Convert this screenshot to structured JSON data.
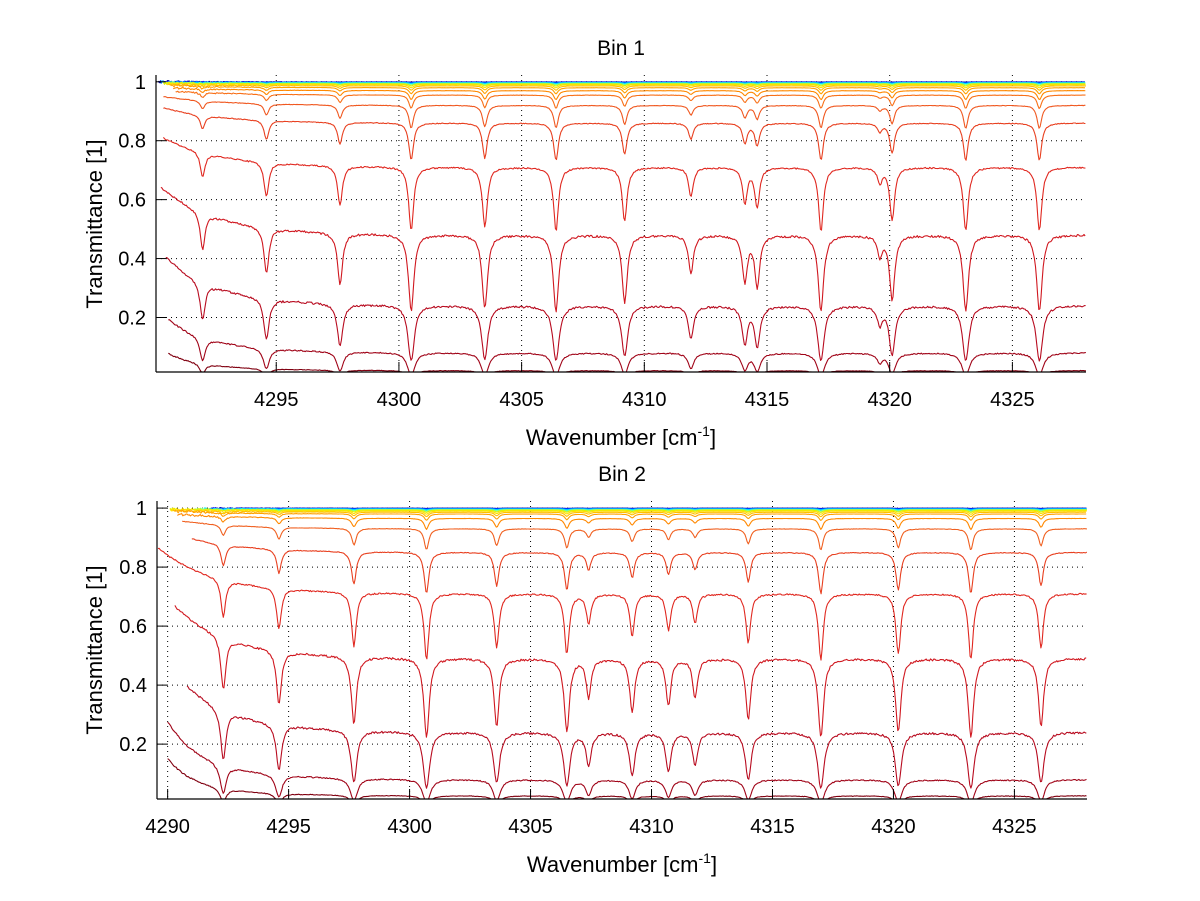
{
  "chart_data": [
    {
      "type": "line",
      "title": "Bin 1",
      "xlabel": "Wavenumber [cm",
      "xlabel_sup": "-1",
      "xlabel_end": "]",
      "ylabel": "Transmittance [1]",
      "xlim": [
        4290.1,
        4328.0
      ],
      "ylim": [
        0.015,
        1.023
      ],
      "xticks": [
        4295,
        4300,
        4305,
        4310,
        4315,
        4320,
        4325
      ],
      "xtick_labels": [
        "4295",
        "4300",
        "4305",
        "4310",
        "4315",
        "4320",
        "4325"
      ],
      "yticks": [
        0.2,
        0.4,
        0.6,
        0.8,
        1
      ],
      "ytick_labels": [
        "0.2",
        "0.4",
        "0.6",
        "0.8",
        "1"
      ],
      "grid": true,
      "legend": "none",
      "continuum_rise_at_low_wavenumber": 0.55,
      "absorption_lines": [
        {
          "center": 4292.0,
          "rel_depth": 0.2
        },
        {
          "center": 4294.6,
          "rel_depth": 0.25
        },
        {
          "center": 4297.6,
          "rel_depth": 0.28
        },
        {
          "center": 4300.5,
          "rel_depth": 0.48
        },
        {
          "center": 4303.5,
          "rel_depth": 0.45
        },
        {
          "center": 4306.4,
          "rel_depth": 0.48
        },
        {
          "center": 4309.2,
          "rel_depth": 0.4
        },
        {
          "center": 4311.9,
          "rel_depth": 0.2
        },
        {
          "center": 4314.1,
          "rel_depth": 0.25
        },
        {
          "center": 4314.6,
          "rel_depth": 0.28
        },
        {
          "center": 4317.2,
          "rel_depth": 0.48
        },
        {
          "center": 4319.6,
          "rel_depth": 0.1
        },
        {
          "center": 4320.1,
          "rel_depth": 0.38
        },
        {
          "center": 4323.1,
          "rel_depth": 0.48
        },
        {
          "center": 4326.1,
          "rel_depth": 0.48
        }
      ],
      "series": [
        {
          "baseline_transmittance": 0.9995,
          "x_start": 4290.2,
          "color": "#00008f"
        },
        {
          "baseline_transmittance": 0.999,
          "x_start": 4290.2,
          "color": "#0000ff"
        },
        {
          "baseline_transmittance": 0.998,
          "x_start": 4290.3,
          "color": "#0080ff"
        },
        {
          "baseline_transmittance": 0.997,
          "x_start": 4290.3,
          "color": "#00e0ff"
        },
        {
          "baseline_transmittance": 0.995,
          "x_start": 4290.4,
          "color": "#80ff80"
        },
        {
          "baseline_transmittance": 0.993,
          "x_start": 4290.4,
          "color": "#e0f000"
        },
        {
          "baseline_transmittance": 0.99,
          "x_start": 4290.5,
          "color": "#ffe000"
        },
        {
          "baseline_transmittance": 0.986,
          "x_start": 4290.6,
          "color": "#ffc000"
        },
        {
          "baseline_transmittance": 0.98,
          "x_start": 4290.7,
          "color": "#ffa000"
        },
        {
          "baseline_transmittance": 0.97,
          "x_start": 4290.8,
          "color": "#ff8800"
        },
        {
          "baseline_transmittance": 0.955,
          "x_start": 4290.9,
          "color": "#f87018"
        },
        {
          "baseline_transmittance": 0.92,
          "x_start": 4290.4,
          "color": "#f05820"
        },
        {
          "baseline_transmittance": 0.86,
          "x_start": 4290.4,
          "color": "#e84020"
        },
        {
          "baseline_transmittance": 0.71,
          "x_start": 4290.4,
          "color": "#e02820"
        },
        {
          "baseline_transmittance": 0.48,
          "x_start": 4290.3,
          "color": "#d01820"
        },
        {
          "baseline_transmittance": 0.24,
          "x_start": 4290.5,
          "color": "#b80c20"
        },
        {
          "baseline_transmittance": 0.08,
          "x_start": 4290.6,
          "color": "#a00418"
        },
        {
          "baseline_transmittance": 0.02,
          "x_start": 4290.6,
          "color": "#800010"
        }
      ]
    },
    {
      "type": "line",
      "title": "Bin 2",
      "xlabel": "Wavenumber [cm",
      "xlabel_sup": "-1",
      "xlabel_end": "]",
      "ylabel": "Transmittance [1]",
      "xlim": [
        4289.56,
        4328.0
      ],
      "ylim": [
        0.014,
        1.024
      ],
      "xticks": [
        4290,
        4295,
        4300,
        4305,
        4310,
        4315,
        4320,
        4325
      ],
      "xtick_labels": [
        "4290",
        "4295",
        "4300",
        "4305",
        "4310",
        "4315",
        "4320",
        "4325"
      ],
      "yticks": [
        0.2,
        0.4,
        0.6,
        0.8,
        1
      ],
      "ytick_labels": [
        "0.2",
        "0.4",
        "0.6",
        "0.8",
        "1"
      ],
      "grid": true,
      "legend": "none",
      "continuum_rise_at_low_wavenumber": 0.6,
      "absorption_lines": [
        {
          "center": 4292.3,
          "rel_depth": 0.3
        },
        {
          "center": 4294.6,
          "rel_depth": 0.3
        },
        {
          "center": 4297.7,
          "rel_depth": 0.4
        },
        {
          "center": 4300.7,
          "rel_depth": 0.5
        },
        {
          "center": 4303.6,
          "rel_depth": 0.4
        },
        {
          "center": 4306.5,
          "rel_depth": 0.45
        },
        {
          "center": 4307.4,
          "rel_depth": 0.2
        },
        {
          "center": 4309.2,
          "rel_depth": 0.3
        },
        {
          "center": 4310.7,
          "rel_depth": 0.25
        },
        {
          "center": 4311.8,
          "rel_depth": 0.2
        },
        {
          "center": 4314.0,
          "rel_depth": 0.35
        },
        {
          "center": 4317.0,
          "rel_depth": 0.5
        },
        {
          "center": 4320.2,
          "rel_depth": 0.45
        },
        {
          "center": 4323.2,
          "rel_depth": 0.5
        },
        {
          "center": 4326.1,
          "rel_depth": 0.4
        }
      ],
      "series": [
        {
          "baseline_transmittance": 0.9995,
          "x_start": 4291.8,
          "color": "#00008f"
        },
        {
          "baseline_transmittance": 0.999,
          "x_start": 4291.8,
          "color": "#0000ff"
        },
        {
          "baseline_transmittance": 0.998,
          "x_start": 4291.7,
          "color": "#0080ff"
        },
        {
          "baseline_transmittance": 0.997,
          "x_start": 4291.5,
          "color": "#00e0ff"
        },
        {
          "baseline_transmittance": 0.995,
          "x_start": 4291.0,
          "color": "#80ff80"
        },
        {
          "baseline_transmittance": 0.993,
          "x_start": 4290.1,
          "color": "#e0f000"
        },
        {
          "baseline_transmittance": 0.99,
          "x_start": 4290.1,
          "color": "#ffe000"
        },
        {
          "baseline_transmittance": 0.986,
          "x_start": 4290.2,
          "color": "#ffc000"
        },
        {
          "baseline_transmittance": 0.98,
          "x_start": 4290.3,
          "color": "#ffa000"
        },
        {
          "baseline_transmittance": 0.965,
          "x_start": 4290.4,
          "color": "#ff8800"
        },
        {
          "baseline_transmittance": 0.93,
          "x_start": 4290.6,
          "color": "#f06020"
        },
        {
          "baseline_transmittance": 0.85,
          "x_start": 4291.0,
          "color": "#e84020"
        },
        {
          "baseline_transmittance": 0.71,
          "x_start": 4289.6,
          "color": "#e02820"
        },
        {
          "baseline_transmittance": 0.49,
          "x_start": 4290.3,
          "color": "#d01820"
        },
        {
          "baseline_transmittance": 0.24,
          "x_start": 4290.8,
          "color": "#b80c20"
        },
        {
          "baseline_transmittance": 0.08,
          "x_start": 4290.0,
          "color": "#a00418"
        },
        {
          "baseline_transmittance": 0.025,
          "x_start": 4290.0,
          "color": "#800010"
        }
      ]
    }
  ]
}
